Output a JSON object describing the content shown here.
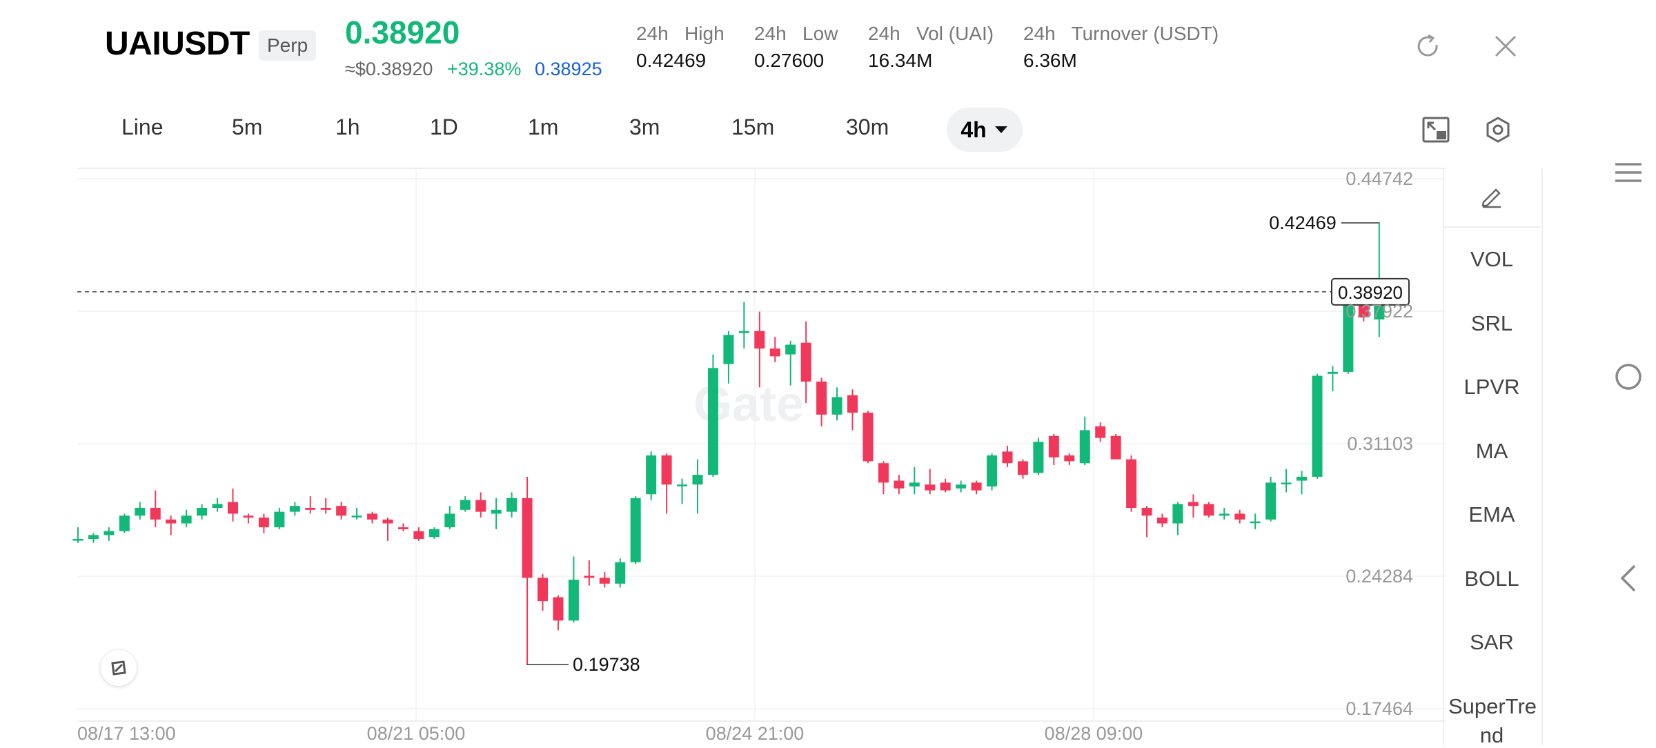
{
  "header": {
    "symbol": "UAIUSDT",
    "badge": "Perp",
    "last_price": "0.38920",
    "approx_price": "≈$0.38920",
    "change_pct": "+39.38%",
    "mark_price": "0.38925",
    "stats": [
      {
        "label": "24h   High",
        "value": "0.42469"
      },
      {
        "label": "24h   Low",
        "value": "0.27600"
      },
      {
        "label": "24h   Vol (UAI)",
        "value": "16.34M"
      },
      {
        "label": "24h   Turnover (USDT)",
        "value": "6.36M"
      }
    ]
  },
  "timeframes": [
    "Line",
    "5m",
    "1h",
    "1D",
    "1m",
    "3m",
    "15m",
    "30m"
  ],
  "active_timeframe": "4h",
  "indicators": [
    "VOL",
    "SRL",
    "LPVR",
    "MA",
    "EMA",
    "BOLL",
    "SAR",
    "SuperTre",
    "nd"
  ],
  "colors": {
    "up": "#11b878",
    "down": "#f2385a",
    "accent_blue": "#1560d8"
  },
  "chart_data": {
    "type": "candlestick",
    "y_ticks": [
      "0.44742",
      "0.37922",
      "0.31103",
      "0.24284",
      "0.17464"
    ],
    "x_ticks": [
      "08/17 13:00",
      "08/21 05:00",
      "08/24 21:00",
      "08/28 09:00"
    ],
    "current_price_label": "0.38920",
    "current_price": 0.3892,
    "high_label": "0.42469",
    "high_value": 0.42469,
    "low_label": "0.19738",
    "low_value": 0.19738,
    "ylim": [
      0.17464,
      0.44742
    ],
    "candles": [
      [
        0.262,
        0.262,
        0.268,
        0.26
      ],
      [
        0.262,
        0.264,
        0.265,
        0.26
      ],
      [
        0.264,
        0.266,
        0.268,
        0.261
      ],
      [
        0.266,
        0.274,
        0.275,
        0.265
      ],
      [
        0.274,
        0.278,
        0.281,
        0.272
      ],
      [
        0.278,
        0.272,
        0.287,
        0.268
      ],
      [
        0.272,
        0.27,
        0.274,
        0.264
      ],
      [
        0.27,
        0.274,
        0.277,
        0.268
      ],
      [
        0.274,
        0.278,
        0.28,
        0.272
      ],
      [
        0.278,
        0.28,
        0.283,
        0.276
      ],
      [
        0.281,
        0.275,
        0.288,
        0.271
      ],
      [
        0.274,
        0.273,
        0.275,
        0.27
      ],
      [
        0.273,
        0.268,
        0.275,
        0.265
      ],
      [
        0.268,
        0.276,
        0.278,
        0.267
      ],
      [
        0.276,
        0.279,
        0.281,
        0.274
      ],
      [
        0.278,
        0.277,
        0.284,
        0.275
      ],
      [
        0.278,
        0.277,
        0.283,
        0.275
      ],
      [
        0.279,
        0.274,
        0.281,
        0.272
      ],
      [
        0.274,
        0.274,
        0.278,
        0.272
      ],
      [
        0.275,
        0.272,
        0.276,
        0.27
      ],
      [
        0.272,
        0.27,
        0.273,
        0.261
      ],
      [
        0.268,
        0.267,
        0.27,
        0.266
      ],
      [
        0.266,
        0.262,
        0.268,
        0.261
      ],
      [
        0.263,
        0.267,
        0.268,
        0.262
      ],
      [
        0.268,
        0.275,
        0.279,
        0.267
      ],
      [
        0.277,
        0.282,
        0.284,
        0.276
      ],
      [
        0.282,
        0.276,
        0.286,
        0.273
      ],
      [
        0.275,
        0.277,
        0.283,
        0.267
      ],
      [
        0.276,
        0.283,
        0.286,
        0.273
      ],
      [
        0.283,
        0.242,
        0.294,
        0.197
      ],
      [
        0.242,
        0.23,
        0.244,
        0.225
      ],
      [
        0.232,
        0.22,
        0.233,
        0.215
      ],
      [
        0.22,
        0.241,
        0.253,
        0.219
      ],
      [
        0.243,
        0.242,
        0.251,
        0.238
      ],
      [
        0.242,
        0.239,
        0.245,
        0.237
      ],
      [
        0.239,
        0.25,
        0.252,
        0.237
      ],
      [
        0.25,
        0.283,
        0.284,
        0.249
      ],
      [
        0.285,
        0.305,
        0.307,
        0.282
      ],
      [
        0.305,
        0.29,
        0.306,
        0.275
      ],
      [
        0.29,
        0.29,
        0.293,
        0.28
      ],
      [
        0.29,
        0.295,
        0.303,
        0.275
      ],
      [
        0.295,
        0.35,
        0.357,
        0.294
      ],
      [
        0.352,
        0.367,
        0.369,
        0.342
      ],
      [
        0.368,
        0.369,
        0.384,
        0.36
      ],
      [
        0.369,
        0.36,
        0.379,
        0.34
      ],
      [
        0.36,
        0.356,
        0.366,
        0.353
      ],
      [
        0.357,
        0.362,
        0.364,
        0.341
      ],
      [
        0.363,
        0.343,
        0.374,
        0.332
      ],
      [
        0.343,
        0.326,
        0.345,
        0.32
      ],
      [
        0.326,
        0.335,
        0.34,
        0.323
      ],
      [
        0.336,
        0.327,
        0.339,
        0.318
      ],
      [
        0.327,
        0.302,
        0.328,
        0.301
      ],
      [
        0.301,
        0.291,
        0.302,
        0.285
      ],
      [
        0.292,
        0.288,
        0.295,
        0.285
      ],
      [
        0.289,
        0.291,
        0.299,
        0.285
      ],
      [
        0.29,
        0.287,
        0.298,
        0.285
      ],
      [
        0.291,
        0.287,
        0.293,
        0.286
      ],
      [
        0.288,
        0.29,
        0.292,
        0.286
      ],
      [
        0.291,
        0.287,
        0.292,
        0.285
      ],
      [
        0.289,
        0.305,
        0.306,
        0.287
      ],
      [
        0.307,
        0.301,
        0.31,
        0.299
      ],
      [
        0.302,
        0.295,
        0.303,
        0.293
      ],
      [
        0.296,
        0.312,
        0.314,
        0.295
      ],
      [
        0.315,
        0.304,
        0.316,
        0.3
      ],
      [
        0.305,
        0.302,
        0.306,
        0.3
      ],
      [
        0.301,
        0.318,
        0.325,
        0.3
      ],
      [
        0.32,
        0.314,
        0.322,
        0.312
      ],
      [
        0.315,
        0.303,
        0.316,
        0.303
      ],
      [
        0.303,
        0.278,
        0.305,
        0.276
      ],
      [
        0.278,
        0.274,
        0.279,
        0.263
      ],
      [
        0.273,
        0.27,
        0.275,
        0.268
      ],
      [
        0.27,
        0.28,
        0.281,
        0.264
      ],
      [
        0.281,
        0.279,
        0.285,
        0.273
      ],
      [
        0.28,
        0.274,
        0.281,
        0.273
      ],
      [
        0.274,
        0.275,
        0.278,
        0.272
      ],
      [
        0.275,
        0.272,
        0.277,
        0.27
      ],
      [
        0.271,
        0.271,
        0.275,
        0.267
      ],
      [
        0.272,
        0.291,
        0.294,
        0.271
      ],
      [
        0.291,
        0.291,
        0.298,
        0.286
      ],
      [
        0.292,
        0.294,
        0.297,
        0.285
      ],
      [
        0.294,
        0.346,
        0.347,
        0.293
      ],
      [
        0.347,
        0.348,
        0.351,
        0.338
      ],
      [
        0.348,
        0.389,
        0.391,
        0.347
      ],
      [
        0.389,
        0.376,
        0.39,
        0.374
      ],
      [
        0.375,
        0.389,
        0.425,
        0.366
      ],
      [
        0.389,
        0.389,
        0.392,
        0.381
      ]
    ]
  }
}
